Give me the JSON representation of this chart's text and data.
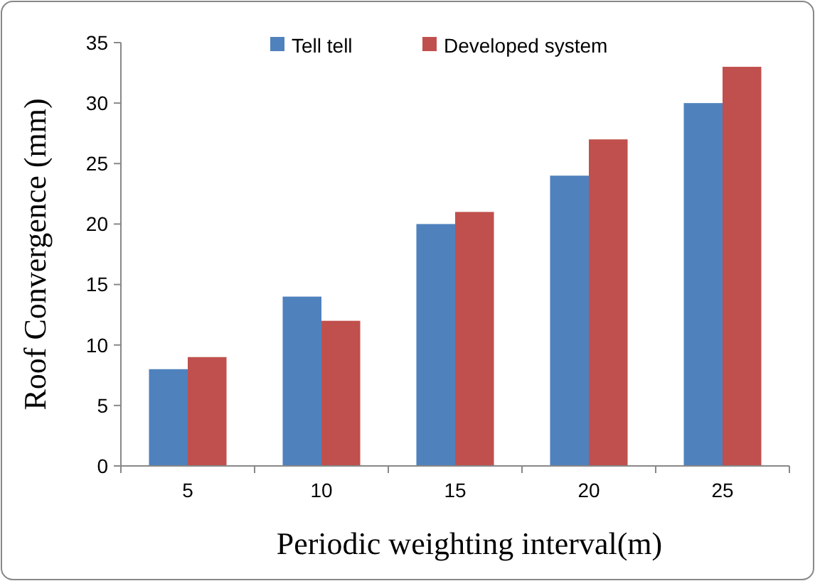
{
  "chart_data": {
    "type": "bar",
    "xlabel": "Periodic weighting interval(m)",
    "ylabel": "Roof Convergence (mm)",
    "categories": [
      "5",
      "10",
      "15",
      "20",
      "25"
    ],
    "series": [
      {
        "name": "Tell tell",
        "color": "#4f81bd",
        "values": [
          8,
          14,
          20,
          24,
          30
        ]
      },
      {
        "name": "Developed system",
        "color": "#c0504d",
        "values": [
          9,
          12,
          21,
          27,
          33
        ]
      }
    ],
    "ylim": [
      0,
      35
    ],
    "yticks": [
      0,
      5,
      10,
      15,
      20,
      25,
      30,
      35
    ],
    "legend": "top",
    "grid": false
  }
}
